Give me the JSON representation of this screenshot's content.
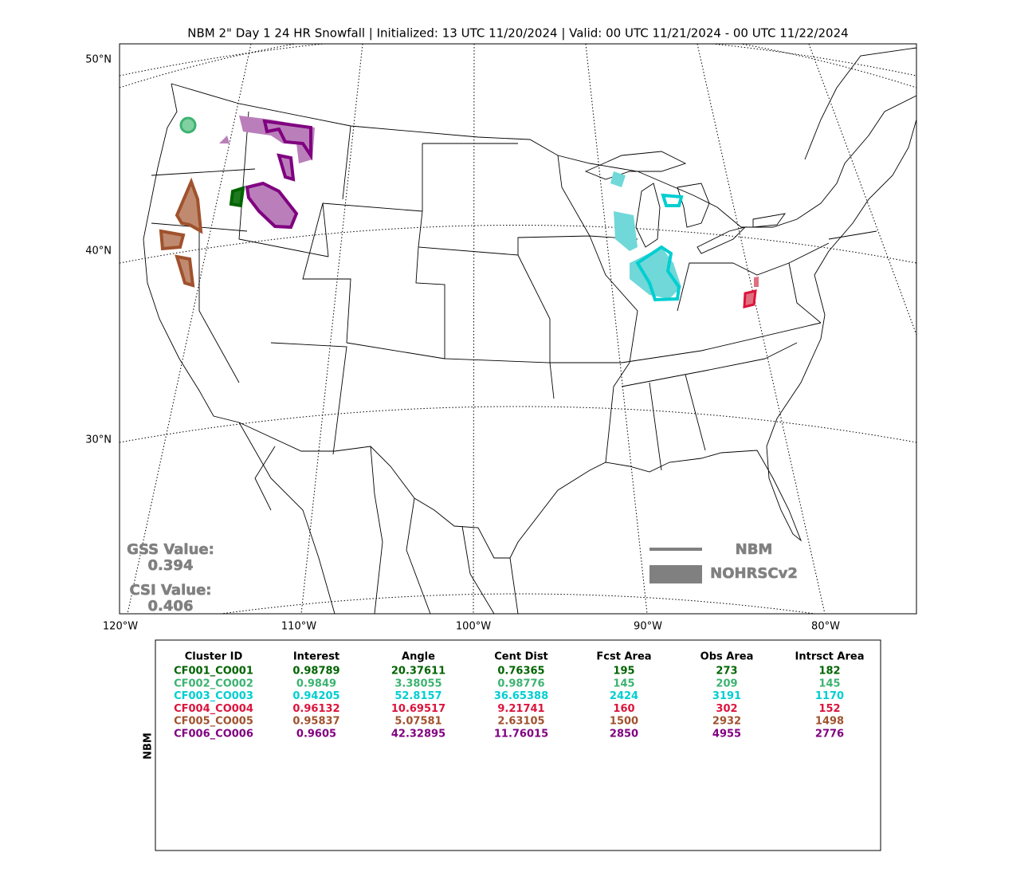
{
  "title": "NBM 2\" Day 1 24 HR Snowfall | Initialized: 13 UTC 11/20/2024 | Valid: 00 UTC 11/21/2024 - 00 UTC 11/22/2024",
  "map": {
    "lat_labels": [
      "50°N",
      "40°N",
      "30°N"
    ],
    "lon_labels": [
      "120°W",
      "110°W",
      "100°W",
      "90°W",
      "80°W"
    ],
    "gss_label": "GSS Value:",
    "gss_value": 0.394,
    "csi_label": "CSI Value:",
    "csi_value": 0.406,
    "legend": [
      "NBM",
      "NOHRSCv2"
    ]
  },
  "table": {
    "row_label": "NBM",
    "header": [
      "Cluster ID",
      "Interest",
      "Angle",
      "Cent Dist",
      "Fcst Area",
      "Obs Area",
      "Intrsct Area"
    ],
    "row_colors": [
      "#006400",
      "#3cb371",
      "#00ced1",
      "#dc143c",
      "#a0522d",
      "#800080"
    ],
    "rows": [
      [
        "CF001_CO001",
        0.98789,
        20.37611,
        0.76365,
        195,
        273,
        182
      ],
      [
        "CF002_CO002",
        0.9849,
        3.38055,
        0.98776,
        145,
        209,
        145
      ],
      [
        "CF003_CO003",
        0.94205,
        52.8157,
        36.65388,
        2424,
        3191,
        1170
      ],
      [
        "CF004_CO004",
        0.96132,
        10.69517,
        9.21741,
        160,
        302,
        152
      ],
      [
        "CF005_CO005",
        0.95837,
        5.07581,
        2.63105,
        1500,
        2932,
        1498
      ],
      [
        "CF006_CO006",
        0.9605,
        42.32895,
        11.76015,
        2850,
        4955,
        2776
      ]
    ]
  }
}
